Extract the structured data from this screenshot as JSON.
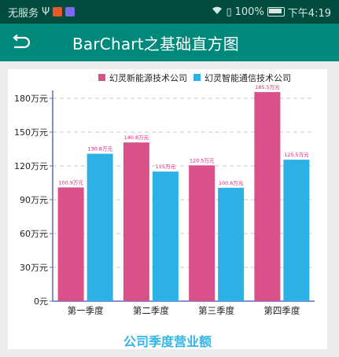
{
  "status_bar": {
    "carrier": "无服务",
    "battery": "100%",
    "time": "下午4:19"
  },
  "toolbar": {
    "title": "BarChart之基础直方图"
  },
  "colors": {
    "series1": "#d9508b",
    "series2": "#2cb1e6",
    "axis": "#5c6bc0",
    "grid": "#c8c8c8",
    "title": "#33b5e5",
    "value_label": "#e0217a",
    "toolbar": "#00897b",
    "status_bar": "#004d40"
  },
  "chart_data": {
    "type": "bar",
    "title": "公司季度营业额",
    "categories": [
      "第一季度",
      "第二季度",
      "第三季度",
      "第四季度"
    ],
    "series": [
      {
        "name": "幻灵新能源技术公司",
        "values": [
          100.9,
          140.8,
          120.5,
          185.5
        ],
        "labels": [
          "100.9万元",
          "140.8万元",
          "120.5万元",
          "185.5万元"
        ]
      },
      {
        "name": "幻灵智能通信技术公司",
        "values": [
          130.8,
          115,
          100.6,
          125.5
        ],
        "labels": [
          "130.8万元",
          "115万元",
          "100.6万元",
          "125.5万元"
        ]
      }
    ],
    "yticks": [
      0,
      30,
      60,
      90,
      120,
      150,
      180
    ],
    "ytick_labels": [
      "0元",
      "30万元",
      "60万元",
      "90万元",
      "120万元",
      "150万元",
      "180万元"
    ],
    "ylim": [
      0,
      180
    ],
    "grid": "horizontal dashed",
    "legend": "top-right"
  }
}
